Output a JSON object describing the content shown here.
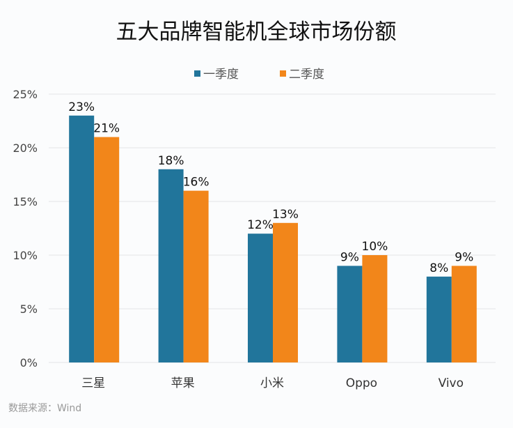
{
  "chart_data": {
    "type": "bar",
    "title": "五大品牌智能机全球市场份额",
    "categories": [
      "三星",
      "苹果",
      "小米",
      "Oppo",
      "Vivo"
    ],
    "series": [
      {
        "name": "一季度",
        "values": [
          23,
          18,
          12,
          9,
          8
        ],
        "color": "#21759b"
      },
      {
        "name": "二季度",
        "values": [
          21,
          16,
          13,
          10,
          9
        ],
        "color": "#f2861a"
      }
    ],
    "data_labels": [
      [
        "23%",
        "18%",
        "12%",
        "9%",
        "8%"
      ],
      [
        "21%",
        "16%",
        "13%",
        "10%",
        "9%"
      ]
    ],
    "y_ticks": [
      "0%",
      "5%",
      "10%",
      "15%",
      "20%",
      "25%"
    ],
    "ylim": [
      0,
      25
    ],
    "grid": true,
    "legend": "top-center",
    "source": "数据来源：Wind"
  }
}
